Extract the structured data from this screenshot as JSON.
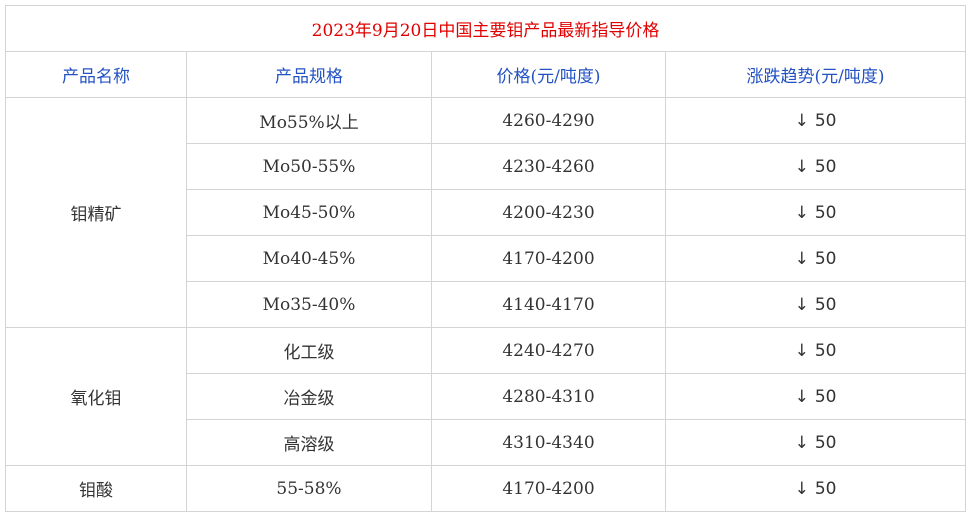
{
  "title": "2023年9月20日中国主要钼产品最新指导价格",
  "headers": [
    "产品名称",
    "产品规格",
    "价格(元/吨度)",
    "涨跌趋势(元/吨度)"
  ],
  "colors": {
    "title": "#e00000",
    "header": "#2352c4",
    "trend_down": "#1f9b1f",
    "border": "#d4d4d4"
  },
  "trend_icon": "down-arrow-icon",
  "groups": [
    {
      "name": "钼精矿",
      "rows": [
        {
          "spec": "Mo55%以上",
          "price": "4260-4290",
          "arrow": "↓",
          "change": "50"
        },
        {
          "spec": "Mo50-55%",
          "price": "4230-4260",
          "arrow": "↓",
          "change": "50"
        },
        {
          "spec": "Mo45-50%",
          "price": "4200-4230",
          "arrow": "↓",
          "change": "50"
        },
        {
          "spec": "Mo40-45%",
          "price": "4170-4200",
          "arrow": "↓",
          "change": "50"
        },
        {
          "spec": "Mo35-40%",
          "price": "4140-4170",
          "arrow": "↓",
          "change": "50"
        }
      ]
    },
    {
      "name": "氧化钼",
      "rows": [
        {
          "spec": "化工级",
          "price": "4240-4270",
          "arrow": "↓",
          "change": "50"
        },
        {
          "spec": "冶金级",
          "price": "4280-4310",
          "arrow": "↓",
          "change": "50"
        },
        {
          "spec": "高溶级",
          "price": "4310-4340",
          "arrow": "↓",
          "change": "50"
        }
      ]
    },
    {
      "name": "钼酸",
      "rows": [
        {
          "spec": "55-58%",
          "price": "4170-4200",
          "arrow": "↓",
          "change": "50"
        }
      ]
    }
  ]
}
